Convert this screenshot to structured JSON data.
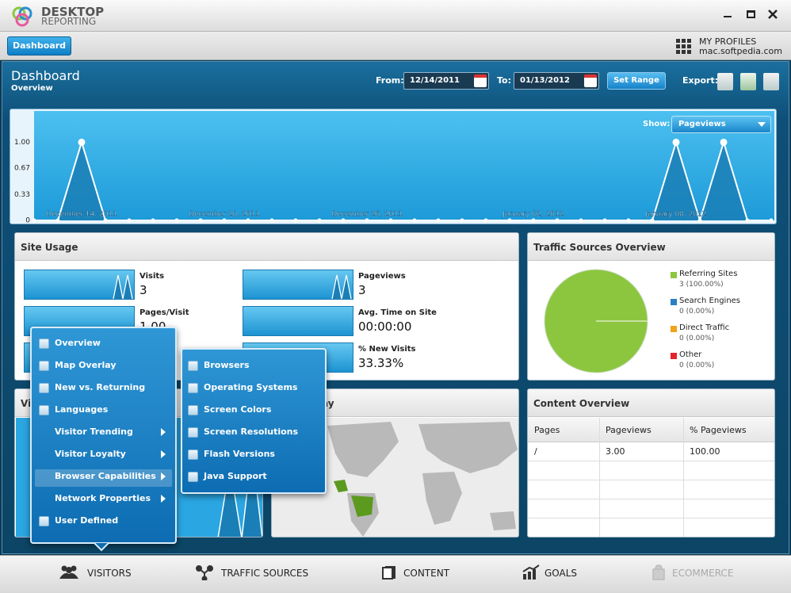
{
  "app": {
    "brand_top": "DESKTOP",
    "brand_bottom": "REPORTING"
  },
  "toolbar": {
    "tab": "Dashboard",
    "profiles_label": "MY PROFILES",
    "profile": "mac.softpedia.com"
  },
  "header": {
    "title": "Dashboard",
    "subtitle": "Overview",
    "from_label": "From:",
    "from": "12/14/2011",
    "to_label": "To:",
    "to": "01/13/2012",
    "set_range": "Set Range",
    "export_label": "Export:"
  },
  "chart": {
    "type": "area",
    "show_label": "Show:",
    "show_value": "Pageviews",
    "categories": [
      null,
      null,
      "December 14, 2011",
      null,
      null,
      null,
      null,
      null,
      "December 20, 2011",
      null,
      null,
      null,
      null,
      null,
      "December 26, 2011",
      null,
      null,
      null,
      null,
      null,
      null,
      "January 02, 2012",
      null,
      null,
      null,
      null,
      null,
      "January 08, 2012",
      null,
      null,
      null,
      null
    ],
    "values": [
      0,
      0,
      1,
      0,
      0,
      0,
      0,
      0,
      0,
      0,
      0,
      0,
      0,
      0,
      0,
      0,
      0,
      0,
      0,
      0,
      0,
      0,
      0,
      0,
      0,
      0,
      0,
      1,
      0,
      1,
      0,
      0
    ],
    "ylim": [
      0,
      1.4
    ],
    "yticks": [
      0,
      0.33,
      0.67,
      {
        "value": 1,
        "label": "1.00"
      }
    ],
    "color": "#1b7fb6"
  },
  "site_usage": {
    "title": "Site Usage",
    "metrics": [
      {
        "label": "Visits",
        "value": "3"
      },
      {
        "label": "Pageviews",
        "value": "3"
      },
      {
        "label": "Pages/Visit",
        "value": "1.00"
      },
      {
        "label": "Avg. Time on Site",
        "value": "00:00:00"
      },
      {
        "label": "% New Visits",
        "value": "33.33%"
      }
    ]
  },
  "traffic": {
    "title": "Traffic Sources Overview",
    "items": [
      {
        "name": "Referring Sites",
        "value": 3,
        "value_label": "3 (100.00%)",
        "color": "#8cc63f"
      },
      {
        "name": "Search Engines",
        "value": 0,
        "value_label": "0 (0.00%)",
        "color": "#2a7fc4"
      },
      {
        "name": "Direct Traffic",
        "value": 0,
        "value_label": "0 (0.00%)",
        "color": "#f2a31b"
      },
      {
        "name": "Other",
        "value": 0,
        "value_label": "0 (0.00%)",
        "color": "#e3242b"
      }
    ]
  },
  "visitors_panel": {
    "title_visible": "Vi"
  },
  "map_panel": {
    "title_visible": "ay"
  },
  "content": {
    "title": "Content Overview",
    "columns": [
      "Pages",
      "Pageviews",
      "% Pageviews"
    ],
    "rows": [
      [
        "/",
        "3.00",
        "100.00"
      ]
    ]
  },
  "menu": {
    "items": [
      {
        "label": "Overview",
        "submenu": false
      },
      {
        "label": "Map Overlay",
        "submenu": false
      },
      {
        "label": "New vs. Returning",
        "submenu": false
      },
      {
        "label": "Languages",
        "submenu": false
      },
      {
        "label": "Visitor Trending",
        "submenu": true
      },
      {
        "label": "Visitor Loyalty",
        "submenu": true
      },
      {
        "label": "Browser Capabilities",
        "submenu": true,
        "highlighted": true
      },
      {
        "label": "Network Properties",
        "submenu": true
      },
      {
        "label": "User Defined",
        "submenu": false
      }
    ]
  },
  "submenu": {
    "items": [
      "Browsers",
      "Operating Systems",
      "Screen Colors",
      "Screen Resolutions",
      "Flash Versions",
      "Java Support"
    ]
  },
  "nav": {
    "items": [
      {
        "label": "VISITORS"
      },
      {
        "label": "TRAFFIC SOURCES"
      },
      {
        "label": "CONTENT"
      },
      {
        "label": "GOALS"
      },
      {
        "label": "ECOMMERCE",
        "disabled": true
      }
    ]
  }
}
